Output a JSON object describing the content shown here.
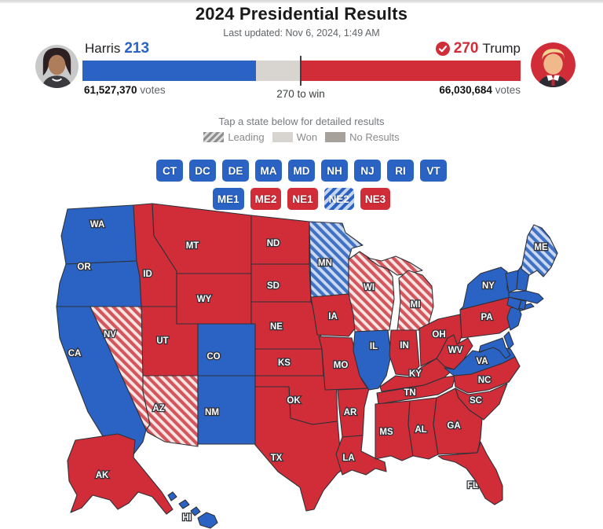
{
  "header": {
    "title": "2024 Presidential Results",
    "last_updated": "Last updated: Nov 6, 2024, 1:49 AM"
  },
  "candidates": {
    "harris": {
      "name": "Harris",
      "electoral_votes": "213",
      "popular_votes": "61,527,370",
      "votes_label": "votes",
      "color": "#2a63c4"
    },
    "trump": {
      "name": "Trump",
      "electoral_votes": "270",
      "popular_votes": "66,030,684",
      "votes_label": "votes",
      "color": "#d02d38",
      "winner": true
    },
    "threshold_label": "270 to win"
  },
  "map_instructions": "Tap a state below for detailed results",
  "legend": {
    "leading": "Leading",
    "won": "Won",
    "no_results": "No Results"
  },
  "state_buttons": {
    "row1": [
      {
        "label": "CT",
        "result": "dem-won"
      },
      {
        "label": "DC",
        "result": "dem-won"
      },
      {
        "label": "DE",
        "result": "dem-won"
      },
      {
        "label": "MA",
        "result": "dem-won"
      },
      {
        "label": "MD",
        "result": "dem-won"
      },
      {
        "label": "NH",
        "result": "dem-won"
      },
      {
        "label": "NJ",
        "result": "dem-won"
      },
      {
        "label": "RI",
        "result": "dem-won"
      },
      {
        "label": "VT",
        "result": "dem-won"
      }
    ],
    "row2": [
      {
        "label": "ME1",
        "result": "dem-won"
      },
      {
        "label": "ME2",
        "result": "rep-won"
      },
      {
        "label": "NE1",
        "result": "rep-won"
      },
      {
        "label": "NE2",
        "result": "dem-leading"
      },
      {
        "label": "NE3",
        "result": "rep-won"
      }
    ]
  },
  "map": {
    "states": [
      {
        "id": "WA",
        "label": "WA",
        "result": "dem-won"
      },
      {
        "id": "OR",
        "label": "OR",
        "result": "dem-won"
      },
      {
        "id": "CA",
        "label": "CA",
        "result": "dem-won"
      },
      {
        "id": "NV",
        "label": "NV",
        "result": "rep-leading"
      },
      {
        "id": "ID",
        "label": "ID",
        "result": "rep-won"
      },
      {
        "id": "MT",
        "label": "MT",
        "result": "rep-won"
      },
      {
        "id": "WY",
        "label": "WY",
        "result": "rep-won"
      },
      {
        "id": "UT",
        "label": "UT",
        "result": "rep-won"
      },
      {
        "id": "CO",
        "label": "CO",
        "result": "dem-won"
      },
      {
        "id": "AZ",
        "label": "AZ",
        "result": "rep-leading"
      },
      {
        "id": "NM",
        "label": "NM",
        "result": "dem-won"
      },
      {
        "id": "ND",
        "label": "ND",
        "result": "rep-won"
      },
      {
        "id": "SD",
        "label": "SD",
        "result": "rep-won"
      },
      {
        "id": "NE",
        "label": "NE",
        "result": "rep-won"
      },
      {
        "id": "KS",
        "label": "KS",
        "result": "rep-won"
      },
      {
        "id": "OK",
        "label": "OK",
        "result": "rep-won"
      },
      {
        "id": "TX",
        "label": "TX",
        "result": "rep-won"
      },
      {
        "id": "MN",
        "label": "MN",
        "result": "dem-leading"
      },
      {
        "id": "IA",
        "label": "IA",
        "result": "rep-won"
      },
      {
        "id": "MO",
        "label": "MO",
        "result": "rep-won"
      },
      {
        "id": "AR",
        "label": "AR",
        "result": "rep-won"
      },
      {
        "id": "LA",
        "label": "LA",
        "result": "rep-won"
      },
      {
        "id": "WI",
        "label": "WI",
        "result": "rep-leading"
      },
      {
        "id": "MIUP",
        "label": "",
        "result": "rep-leading"
      },
      {
        "id": "MI",
        "label": "MI",
        "result": "rep-leading"
      },
      {
        "id": "IL",
        "label": "IL",
        "result": "dem-won"
      },
      {
        "id": "IN",
        "label": "IN",
        "result": "rep-won"
      },
      {
        "id": "OH",
        "label": "OH",
        "result": "rep-won"
      },
      {
        "id": "KY",
        "label": "KY",
        "result": "rep-won"
      },
      {
        "id": "TN",
        "label": "TN",
        "result": "rep-won"
      },
      {
        "id": "MS",
        "label": "MS",
        "result": "rep-won"
      },
      {
        "id": "AL",
        "label": "AL",
        "result": "rep-won"
      },
      {
        "id": "GA",
        "label": "GA",
        "result": "rep-won"
      },
      {
        "id": "FL",
        "label": "FL",
        "result": "rep-won"
      },
      {
        "id": "SC",
        "label": "SC",
        "result": "rep-won"
      },
      {
        "id": "NC",
        "label": "NC",
        "result": "rep-won"
      },
      {
        "id": "VA",
        "label": "VA",
        "result": "dem-won"
      },
      {
        "id": "WV",
        "label": "WV",
        "result": "rep-won"
      },
      {
        "id": "PA",
        "label": "PA",
        "result": "rep-won"
      },
      {
        "id": "NY",
        "label": "NY",
        "result": "dem-won"
      },
      {
        "id": "NYLI",
        "label": "",
        "result": "dem-won"
      },
      {
        "id": "NJ",
        "label": "",
        "result": "dem-won"
      },
      {
        "id": "DE",
        "label": "",
        "result": "dem-won"
      },
      {
        "id": "MD",
        "label": "",
        "result": "dem-won"
      },
      {
        "id": "VT",
        "label": "",
        "result": "dem-won"
      },
      {
        "id": "NH",
        "label": "",
        "result": "dem-won"
      },
      {
        "id": "MA",
        "label": "",
        "result": "dem-won"
      },
      {
        "id": "CT",
        "label": "",
        "result": "dem-won"
      },
      {
        "id": "RI",
        "label": "",
        "result": "dem-won"
      },
      {
        "id": "ME",
        "label": "ME",
        "result": "dem-leading"
      },
      {
        "id": "AK",
        "label": "AK",
        "result": "rep-won"
      },
      {
        "id": "HI",
        "label": "HI",
        "result": "dem-won"
      }
    ]
  },
  "colors": {
    "dem": "#2a63c4",
    "rep": "#d02d38",
    "undecided_bar": "#d8d5d1",
    "won_swatch": "#d8d5d0",
    "no_results_swatch": "#a6a19b"
  }
}
